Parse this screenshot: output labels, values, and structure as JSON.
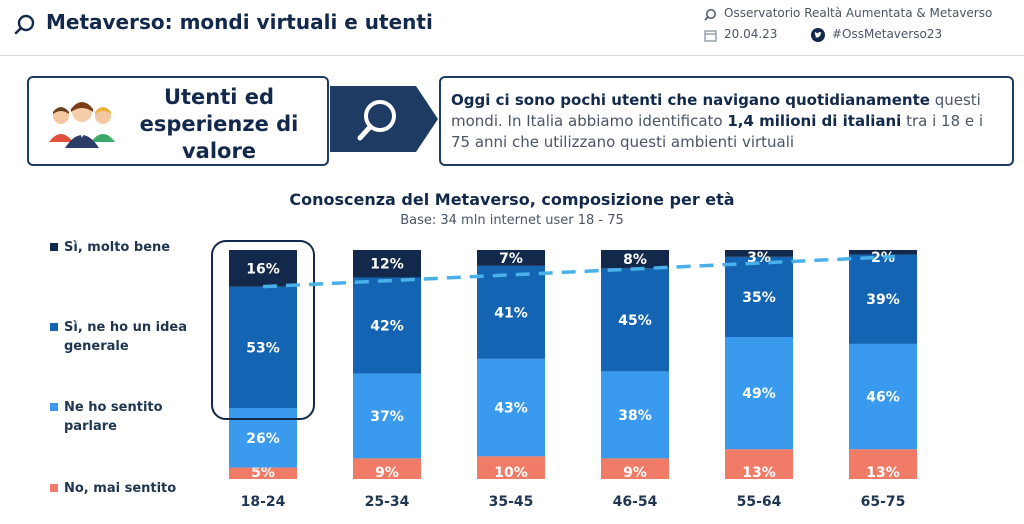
{
  "header": {
    "title": "Metaverso: mondi virtuali e utenti",
    "org": "Osservatorio Realtà Aumentata & Metaverso",
    "date": "20.04.23",
    "hashtag": "#OssMetaverso23"
  },
  "info_box": {
    "title": "Utenti ed\nesperienze di\nvalore",
    "text_1": "Oggi ci sono pochi utenti che navigano quotidianamente",
    "text_2": " questi mondi. In Italia abbiamo identificato ",
    "text_3": "1,4 milioni di italiani",
    "text_4": " tra i 18 e i 75 anni che utilizzano questi ambienti virtuali"
  },
  "colors": {
    "navy": "#13294b",
    "dark_blue": "#1464b4",
    "light_blue": "#3a9bee",
    "salmon": "#f07b67",
    "trend": "#4ab0ea"
  },
  "chart_data": {
    "type": "bar",
    "stacked": true,
    "title": "Conoscenza del Metaverso, composizione per età",
    "subtitle": "Base: 34 mln internet user 18 - 75",
    "categories": [
      "18-24",
      "25-34",
      "35-45",
      "46-54",
      "55-64",
      "65-75"
    ],
    "series": [
      {
        "name": "No, mai sentito",
        "color": "#f07b67",
        "values": [
          5,
          9,
          10,
          9,
          13,
          13
        ],
        "labels": [
          "5%",
          "9%",
          "10%",
          "9%",
          "13%",
          "13%"
        ]
      },
      {
        "name": "Ne ho sentito parlare",
        "color": "#3a9bee",
        "values": [
          26,
          37,
          43,
          38,
          49,
          46
        ],
        "labels": [
          "26%",
          "37%",
          "43%",
          "38%",
          "49%",
          "46%"
        ]
      },
      {
        "name": "Sì, ne ho un idea generale",
        "color": "#1464b4",
        "values": [
          53,
          42,
          41,
          45,
          35,
          39
        ],
        "labels": [
          "53%",
          "42%",
          "41%",
          "45%",
          "35%",
          "39%"
        ]
      },
      {
        "name": "Sì, molto bene",
        "color": "#13294b",
        "values": [
          16,
          12,
          7,
          8,
          3,
          2
        ],
        "labels": [
          "16%",
          "12%",
          "7%",
          "8%",
          "3%",
          "2%"
        ]
      }
    ],
    "ylim": [
      0,
      100
    ],
    "highlight_category": "18-24",
    "trend_line": "dashed, across top of 'Sì, ne ho un idea generale' segments"
  }
}
